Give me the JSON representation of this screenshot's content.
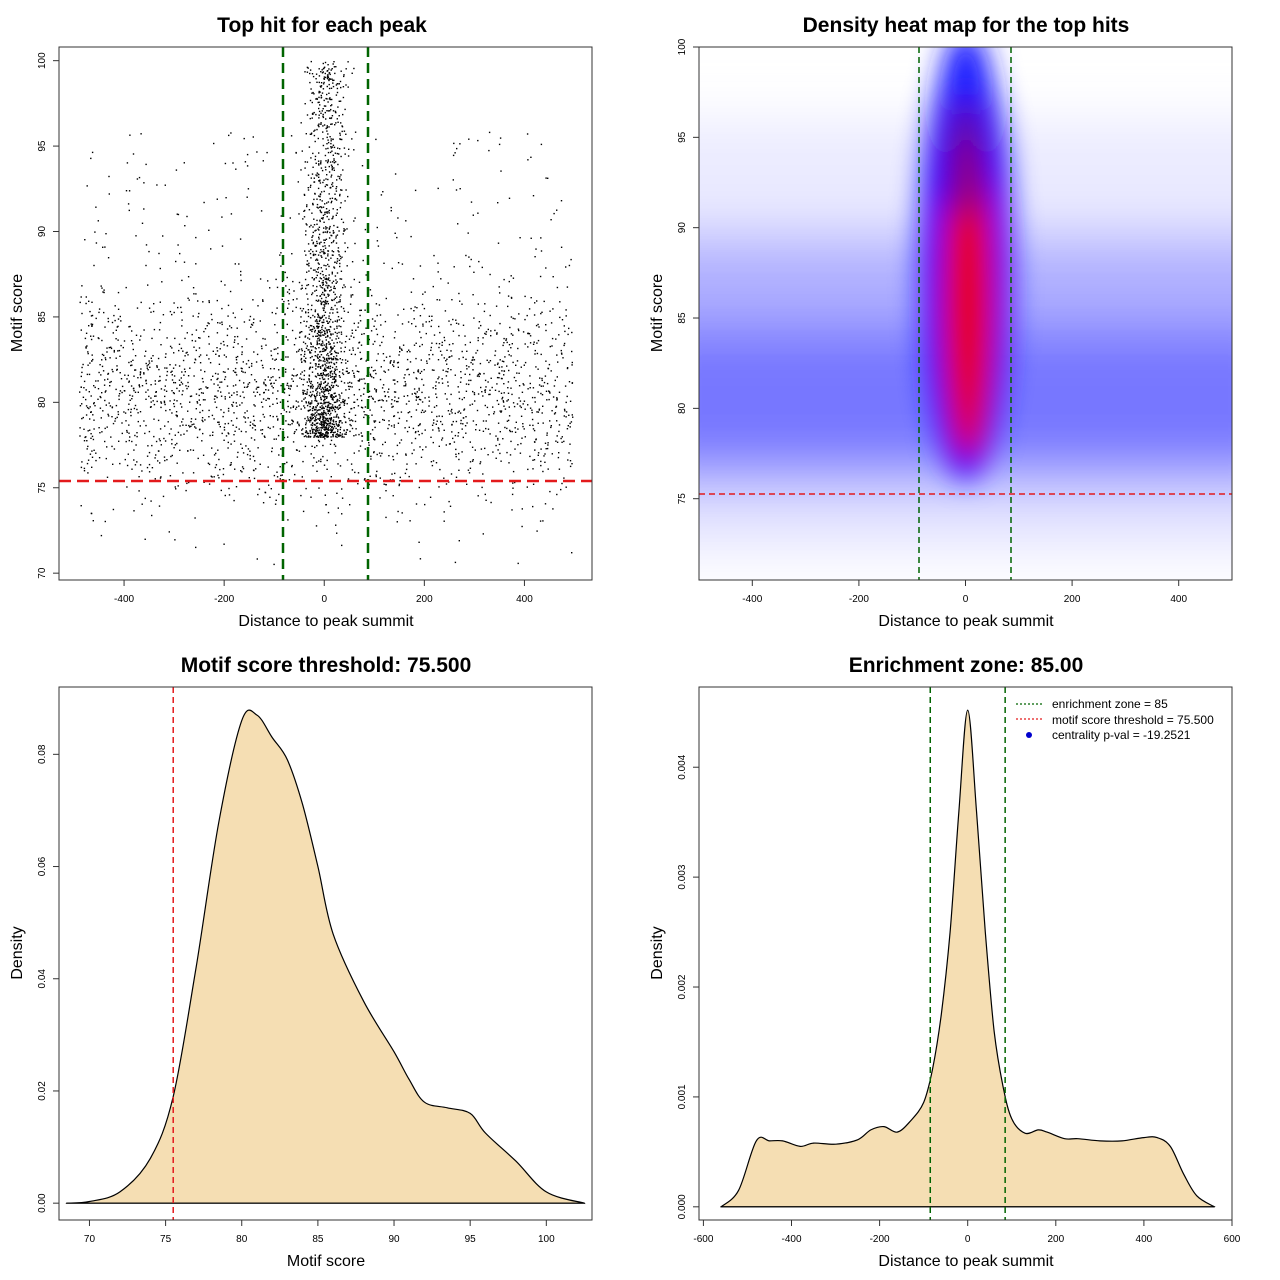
{
  "colors": {
    "points": "#000000",
    "enrichment": "#006400",
    "threshold": "#e31a1c",
    "fill": "#f5deb3",
    "heat_low": "#ffffff",
    "heat_mid": "#0000ff",
    "heat_high": "#ff0000",
    "legend_dot": "#0000cd"
  },
  "chart_data": [
    {
      "type": "scatter",
      "title": "Top hit for each peak",
      "xlabel": "Distance to peak summit",
      "ylabel": "Motif score",
      "xlim": [
        -530,
        535
      ],
      "ylim": [
        69.6,
        100.8
      ],
      "xticks": [
        "-400",
        "-200",
        "0",
        "200",
        "400"
      ],
      "yticks": [
        "70",
        "75",
        "80",
        "85",
        "90",
        "95",
        "100"
      ],
      "xtick_values": [
        -400,
        -200,
        0,
        200,
        400
      ],
      "ytick_values": [
        70,
        75,
        80,
        85,
        90,
        95,
        100
      ],
      "enrichment_zone": [
        -85,
        85
      ],
      "threshold": 75.5,
      "background_points": {
        "n": 2600,
        "x_range": [
          -490,
          495
        ],
        "y_center": 80.5,
        "y_spread": 3.2
      },
      "central_points": {
        "n": 1500,
        "x_spread": 22,
        "y_range": [
          78,
          100
        ]
      }
    },
    {
      "type": "heatmap",
      "title": "Density heat map for the top hits",
      "xlabel": "Distance to peak summit",
      "ylabel": "Motif score",
      "xlim": [
        -500,
        500
      ],
      "ylim": [
        70.5,
        100
      ],
      "xticks": [
        "-400",
        "-200",
        "0",
        "200",
        "400"
      ],
      "yticks": [
        "75",
        "80",
        "85",
        "90",
        "95",
        "100"
      ],
      "xtick_values": [
        -400,
        -200,
        0,
        200,
        400
      ],
      "ytick_values": [
        75,
        80,
        85,
        90,
        95,
        100
      ],
      "enrichment_zone": [
        -85,
        85
      ],
      "threshold": 75.5,
      "hotspot": {
        "x": 5,
        "y_range": [
          78,
          96
        ]
      }
    },
    {
      "type": "area",
      "title": "Motif score threshold: 75.500",
      "xlabel": "Motif score",
      "ylabel": "Density",
      "xlim": [
        68,
        103
      ],
      "ylim": [
        -0.003,
        0.092
      ],
      "xticks": [
        "70",
        "75",
        "80",
        "85",
        "90",
        "95",
        "100"
      ],
      "yticks": [
        "0.00",
        "0.02",
        "0.04",
        "0.06",
        "0.08"
      ],
      "xtick_values": [
        70,
        75,
        80,
        85,
        90,
        95,
        100
      ],
      "ytick_values": [
        0,
        0.02,
        0.04,
        0.06,
        0.08
      ],
      "threshold": 75.5,
      "x": [
        68.5,
        70,
        72,
        74,
        75.5,
        77,
        78.5,
        80,
        81,
        82,
        83,
        84,
        85,
        86,
        88,
        90,
        91,
        92,
        93.5,
        95,
        96,
        98,
        100,
        102.5
      ],
      "y": [
        0,
        0.0003,
        0.002,
        0.008,
        0.019,
        0.042,
        0.068,
        0.086,
        0.087,
        0.083,
        0.079,
        0.071,
        0.06,
        0.048,
        0.036,
        0.027,
        0.022,
        0.018,
        0.017,
        0.016,
        0.0125,
        0.0075,
        0.002,
        0
      ]
    },
    {
      "type": "area",
      "title": "Enrichment zone: 85.00",
      "xlabel": "Distance to peak summit",
      "ylabel": "Density",
      "xlim": [
        -610,
        600
      ],
      "ylim": [
        -0.00012,
        0.00473
      ],
      "xticks": [
        "-600",
        "-400",
        "-200",
        "0",
        "200",
        "400",
        "600"
      ],
      "yticks": [
        "0.000",
        "0.001",
        "0.002",
        "0.003",
        "0.004"
      ],
      "xtick_values": [
        -600,
        -400,
        -200,
        0,
        200,
        400,
        600
      ],
      "ytick_values": [
        0,
        0.001,
        0.002,
        0.003,
        0.004
      ],
      "enrichment_zone": [
        -85,
        85
      ],
      "x": [
        -560,
        -520,
        -480,
        -450,
        -420,
        -380,
        -350,
        -300,
        -250,
        -220,
        -190,
        -160,
        -130,
        -100,
        -80,
        -60,
        -40,
        -20,
        0,
        20,
        40,
        60,
        80,
        100,
        130,
        160,
        180,
        220,
        250,
        300,
        350,
        400,
        430,
        460,
        490,
        520,
        560
      ],
      "y": [
        0,
        0.00015,
        0.0006,
        0.0006,
        0.0006,
        0.00055,
        0.00058,
        0.00057,
        0.00061,
        0.0007,
        0.00073,
        0.00068,
        0.00078,
        0.00095,
        0.00125,
        0.00175,
        0.0025,
        0.0036,
        0.00452,
        0.0036,
        0.0025,
        0.0016,
        0.0011,
        0.0008,
        0.00067,
        0.0007,
        0.00068,
        0.00062,
        0.00062,
        0.0006,
        0.0006,
        0.00063,
        0.00063,
        0.00055,
        0.0003,
        0.0001,
        0
      ],
      "legend": [
        {
          "label": "enrichment zone = 85",
          "style": "dotted",
          "color": "#006400"
        },
        {
          "label": "motif score threshold = 75.500",
          "style": "dotted",
          "color": "#e31a1c"
        },
        {
          "label": "centrality p-val = -19.2521",
          "style": "dot",
          "color": "#0000cd"
        }
      ]
    }
  ]
}
